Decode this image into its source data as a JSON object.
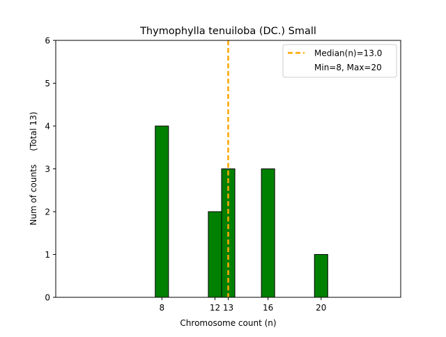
{
  "chart_data": {
    "type": "bar",
    "title": "Thymophylla tenuiloba (DC.) Small",
    "xlabel": "Chromosome count (n)",
    "ylabel": "Num of counts     (Total 13)",
    "xlim": [
      0,
      26
    ],
    "ylim": [
      0,
      6
    ],
    "x_ticks": [
      8,
      12,
      13,
      16,
      20
    ],
    "y_ticks": [
      0,
      1,
      2,
      3,
      4,
      5,
      6
    ],
    "bars": [
      {
        "x": 8,
        "value": 4
      },
      {
        "x": 12,
        "value": 2
      },
      {
        "x": 13,
        "value": 3
      },
      {
        "x": 16,
        "value": 3
      },
      {
        "x": 20,
        "value": 1
      }
    ],
    "zero_bins_range": [
      0,
      23.5
    ],
    "bar_width": 1,
    "bar_color": "#008000",
    "bar_edge_color": "#000000",
    "median": 13.0,
    "median_color": "#FFA500",
    "legend": {
      "position": "top-right",
      "entries": [
        {
          "label": "Median(n)=13.0",
          "style": "dashed-line"
        },
        {
          "label": "Min=8, Max=20",
          "style": "none"
        }
      ]
    },
    "grid": false
  }
}
